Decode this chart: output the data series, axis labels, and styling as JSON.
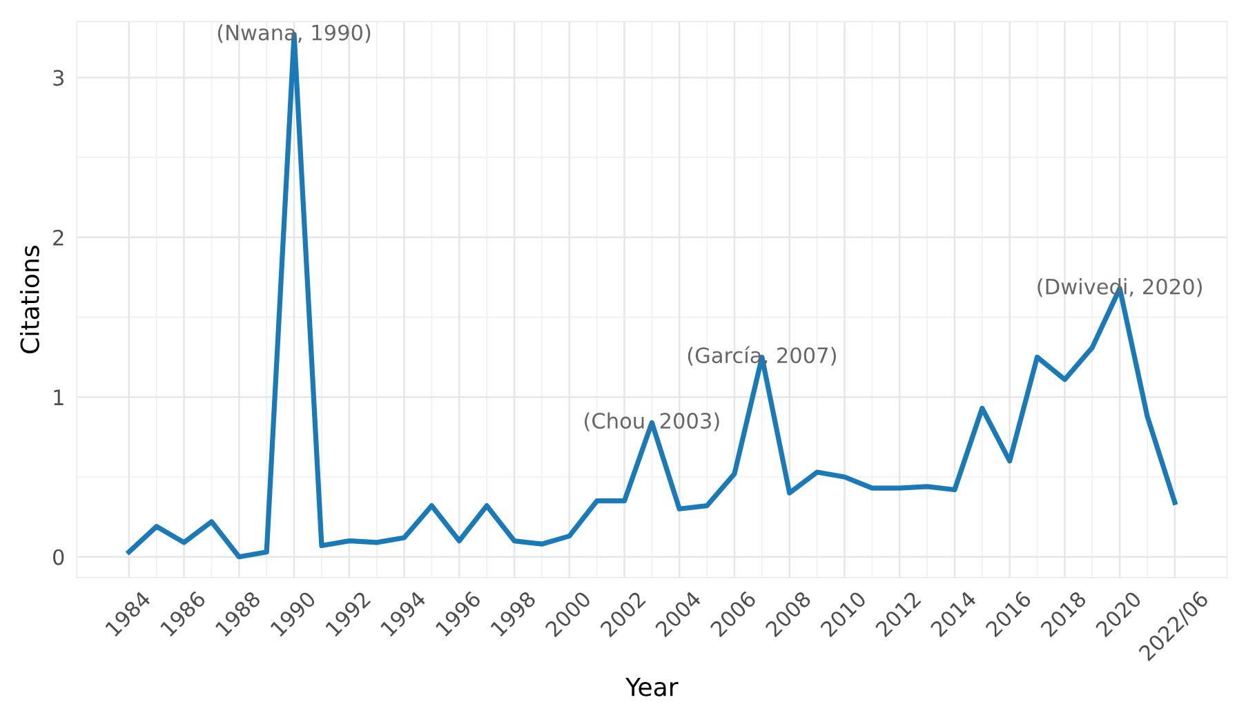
{
  "chart_data": {
    "type": "line",
    "xlabel": "Year",
    "ylabel": "Citations",
    "x": [
      1984,
      1985,
      1986,
      1987,
      1988,
      1989,
      1990,
      1991,
      1992,
      1993,
      1994,
      1995,
      1996,
      1997,
      1998,
      1999,
      2000,
      2001,
      2002,
      2003,
      2004,
      2005,
      2006,
      2007,
      2008,
      2009,
      2010,
      2011,
      2012,
      2013,
      2014,
      2015,
      2016,
      2017,
      2018,
      2019,
      2020,
      2021,
      2022
    ],
    "series": [
      {
        "color": "#1a7ab8",
        "values": [
          0.03,
          0.19,
          0.09,
          0.22,
          0.0,
          0.03,
          3.27,
          0.07,
          0.1,
          0.09,
          0.12,
          0.32,
          0.1,
          0.32,
          0.1,
          0.08,
          0.13,
          0.35,
          0.35,
          0.84,
          0.3,
          0.32,
          0.52,
          1.25,
          0.4,
          0.53,
          0.5,
          0.43,
          0.43,
          0.44,
          0.42,
          0.93,
          0.6,
          1.25,
          1.11,
          1.31,
          1.68,
          0.88,
          0.34
        ]
      }
    ],
    "xlim": [
      1982.1,
      2023.9
    ],
    "ylim": [
      -0.13,
      3.35
    ],
    "xticks": [
      1984,
      1986,
      1988,
      1990,
      1992,
      1994,
      1996,
      1998,
      2000,
      2002,
      2004,
      2006,
      2008,
      2010,
      2012,
      2014,
      2016,
      2018,
      2020,
      {
        "value": 2022,
        "label": "2022/06"
      }
    ],
    "yticks": [
      0,
      1,
      2,
      3
    ],
    "grid": true,
    "marker": "none",
    "line_style": "solid",
    "annotations": [
      {
        "text": "(Nwana, 1990)",
        "x": 1990,
        "y": 3.27
      },
      {
        "text": "(Chou, 2003)",
        "x": 2003,
        "y": 0.84
      },
      {
        "text": "(García, 2007)",
        "x": 2007,
        "y": 1.25
      },
      {
        "text": "(Dwivedi, 2020)",
        "x": 2020,
        "y": 1.68
      }
    ]
  }
}
